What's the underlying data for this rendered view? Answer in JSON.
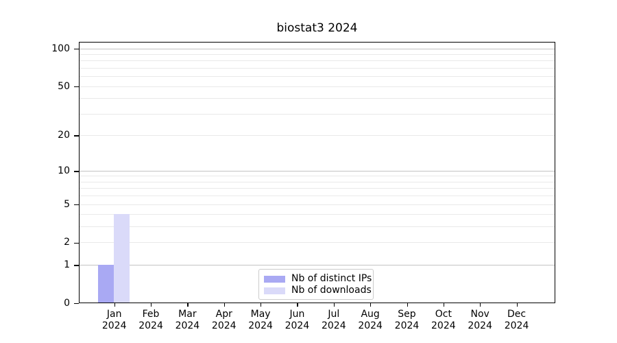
{
  "chart_data": {
    "type": "bar",
    "title": "biostat3 2024",
    "categories": [
      "Jan",
      "Feb",
      "Mar",
      "Apr",
      "May",
      "Jun",
      "Jul",
      "Aug",
      "Sep",
      "Oct",
      "Nov",
      "Dec"
    ],
    "category_year": "2024",
    "series": [
      {
        "name": "Nb of distinct IPs",
        "color": "#a9a9f3",
        "values": [
          1,
          0,
          0,
          0,
          0,
          0,
          0,
          0,
          0,
          0,
          0,
          0
        ]
      },
      {
        "name": "Nb of downloads",
        "color": "#dadaf9",
        "values": [
          4,
          0,
          0,
          0,
          0,
          0,
          0,
          0,
          0,
          0,
          0,
          0
        ]
      }
    ],
    "y_axis": {
      "scale": "log1p",
      "tick_labels": [
        0,
        1,
        2,
        5,
        10,
        20,
        50,
        100
      ],
      "major_gridlines": [
        1,
        10,
        100
      ],
      "minor_gridlines": [
        2,
        3,
        4,
        5,
        6,
        7,
        8,
        9,
        20,
        30,
        40,
        50,
        60,
        70,
        80,
        90
      ],
      "range": [
        0,
        112
      ]
    },
    "x_axis": {
      "tick_count": 12
    },
    "legend": {
      "position": "lower center"
    },
    "grid": true,
    "colors": {
      "axis": "#000000",
      "major_grid": "#c2c2c2",
      "minor_grid": "#e9e9e9",
      "background": "#ffffff"
    }
  }
}
